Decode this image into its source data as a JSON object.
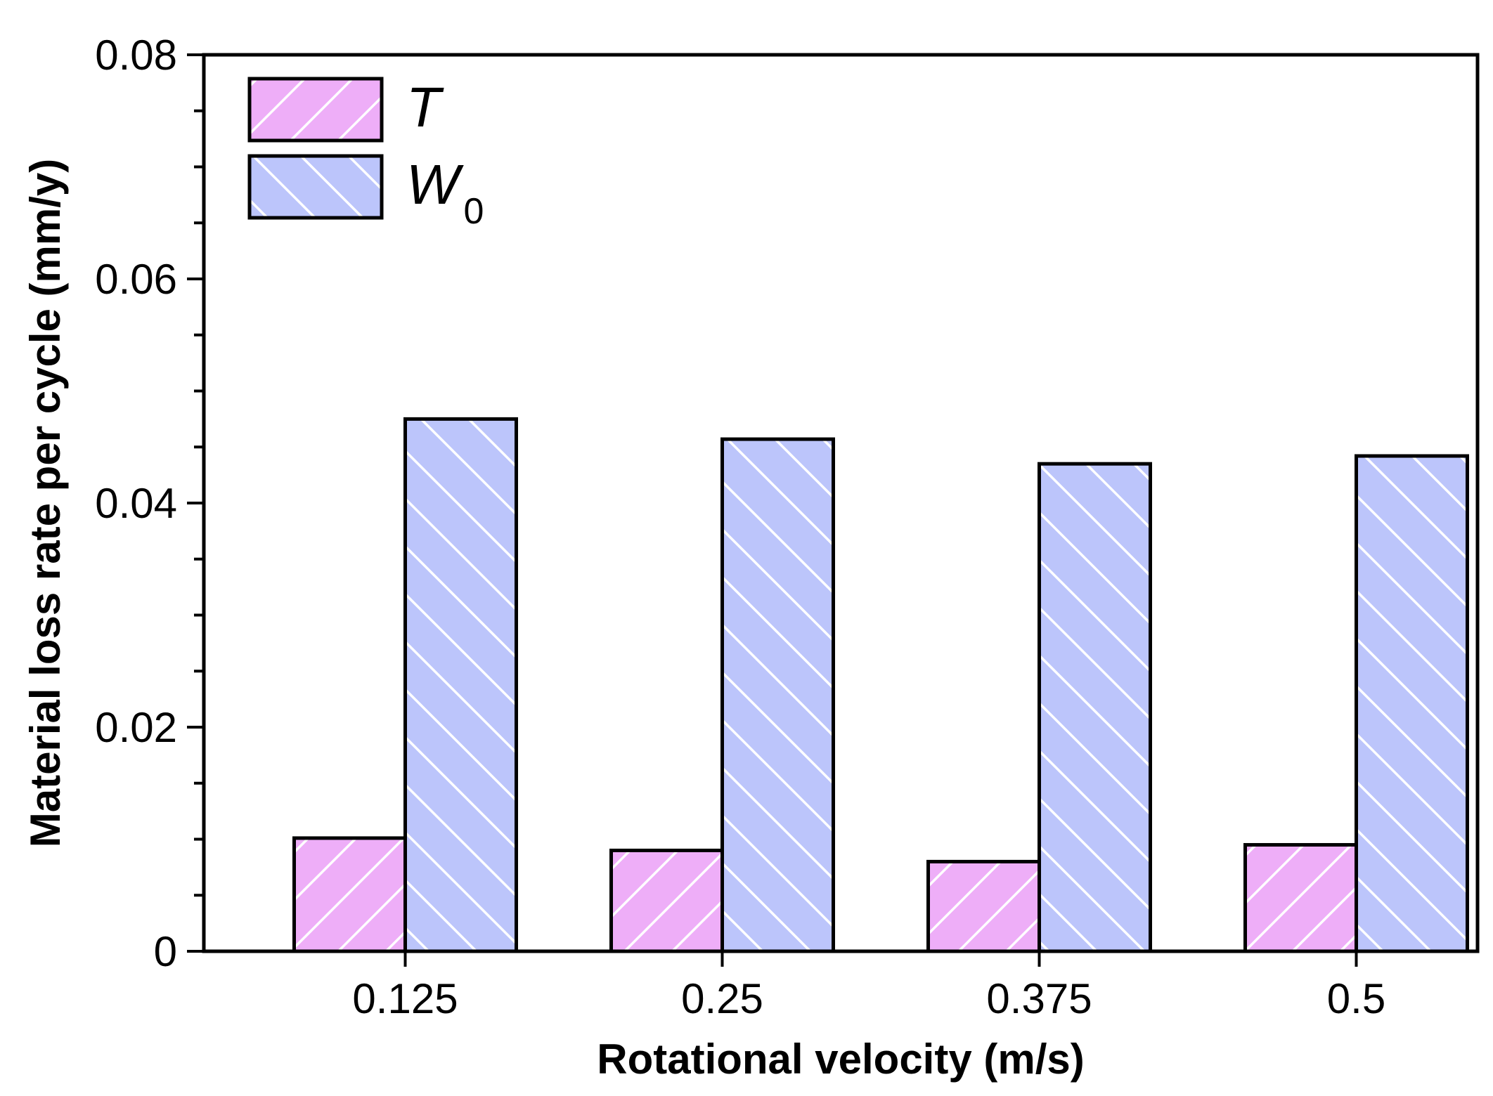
{
  "chart_data": {
    "type": "bar",
    "title": "",
    "xlabel": "Rotational velocity (m/s)",
    "ylabel": "Material loss rate per cycle (mm/y)",
    "categories": [
      "0.125",
      "0.25",
      "0.375",
      "0.5"
    ],
    "ylim": [
      0,
      0.08
    ],
    "yticks": [
      0,
      0.02,
      0.04,
      0.06,
      0.08
    ],
    "ytick_labels": [
      "0",
      "0.02",
      "0.04",
      "0.06",
      "0.08"
    ],
    "grid": false,
    "legend_position": "top-left",
    "series": [
      {
        "name": "T",
        "subscript": "",
        "color": "#eeaef8",
        "hatch": "forward-diagonal",
        "values": [
          0.0101,
          0.009,
          0.008,
          0.0095
        ]
      },
      {
        "name": "W",
        "subscript": "0",
        "color": "#bcc5fb",
        "hatch": "backward-diagonal",
        "values": [
          0.0475,
          0.0457,
          0.0435,
          0.0442
        ]
      }
    ],
    "colors": {
      "axis": "#000000",
      "hatch_line": "#ffffff",
      "background": "#ffffff"
    }
  }
}
